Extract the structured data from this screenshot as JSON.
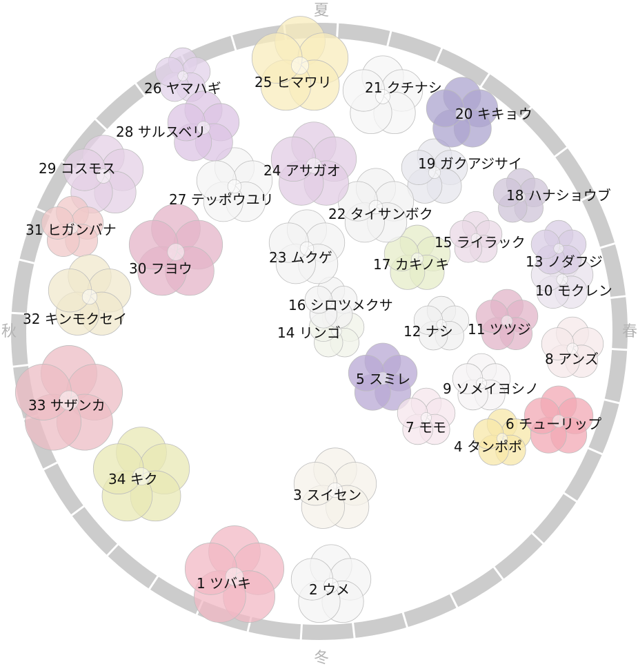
{
  "colors": {
    "ring": "#cccccc",
    "ring_divider": "#ffffff",
    "season_text": "#b3b3b3",
    "label_text": "#111111"
  },
  "seasons": [
    {
      "id": "summer",
      "label": "夏"
    },
    {
      "id": "spring",
      "label": "春"
    },
    {
      "id": "winter",
      "label": "冬"
    },
    {
      "id": "autumn",
      "label": "秋"
    }
  ],
  "ring_segments": 36,
  "flowers": [
    {
      "id": 1,
      "label": "1 ツバキ",
      "icon": "camellia-icon",
      "color": "#f2b8c4"
    },
    {
      "id": 2,
      "label": "2 ウメ",
      "icon": "ume-icon",
      "color": "#f4f4f4"
    },
    {
      "id": 3,
      "label": "3 スイセン",
      "icon": "narcissus-icon",
      "color": "#f6f2ea"
    },
    {
      "id": 4,
      "label": "4 タンポポ",
      "icon": "dandelion-icon",
      "color": "#f7e7a8"
    },
    {
      "id": 5,
      "label": "5 スミレ",
      "icon": "violet-icon",
      "color": "#b8a8d4"
    },
    {
      "id": 6,
      "label": "6 チューリップ",
      "icon": "tulip-icon",
      "color": "#f2a8b4"
    },
    {
      "id": 7,
      "label": "7 モモ",
      "icon": "peach-icon",
      "color": "#f6e6ec"
    },
    {
      "id": 8,
      "label": "8 アンズ",
      "icon": "apricot-icon",
      "color": "#f6e8ea"
    },
    {
      "id": 9,
      "label": "9 ソメイヨシノ",
      "icon": "cherry-blossom-icon",
      "color": "#f6f3f4"
    },
    {
      "id": 10,
      "label": "10 モクレン",
      "icon": "magnolia-icon",
      "color": "#e8e2ec"
    },
    {
      "id": 11,
      "label": "11 ツツジ",
      "icon": "azalea-icon",
      "color": "#e2b4c8"
    },
    {
      "id": 12,
      "label": "12 ナシ",
      "icon": "pear-icon",
      "color": "#f0f0f0"
    },
    {
      "id": 13,
      "label": "13 ノダフジ",
      "icon": "wisteria-icon",
      "color": "#d8cce4"
    },
    {
      "id": 14,
      "label": "14 リンゴ",
      "icon": "apple-icon",
      "color": "#f0f3e8"
    },
    {
      "id": 15,
      "label": "15 ライラック",
      "icon": "lilac-icon",
      "color": "#ead8e6"
    },
    {
      "id": 16,
      "label": "16 シロツメクサ",
      "icon": "clover-icon",
      "color": "#f3f3f3"
    },
    {
      "id": 17,
      "label": "17 カキノキ",
      "icon": "persimmon-icon",
      "color": "#e6ecc8"
    },
    {
      "id": 18,
      "label": "18 ハナショウブ",
      "icon": "iris-icon",
      "color": "#cfc4d8"
    },
    {
      "id": 19,
      "label": "19 ガクアジサイ",
      "icon": "hydrangea-icon",
      "color": "#e6e6ec"
    },
    {
      "id": 20,
      "label": "20 キキョウ",
      "icon": "bellflower-icon",
      "color": "#aca4cf"
    },
    {
      "id": 21,
      "label": "21 クチナシ",
      "icon": "gardenia-icon",
      "color": "#f6f6f6"
    },
    {
      "id": 22,
      "label": "22 タイサンボク",
      "icon": "southern-magnolia-icon",
      "color": "#f2f2f2"
    },
    {
      "id": 23,
      "label": "23 ムクゲ",
      "icon": "rose-of-sharon-icon",
      "color": "#f3f3f3"
    },
    {
      "id": 24,
      "label": "24 アサガオ",
      "icon": "morning-glory-icon",
      "color": "#e2cce4"
    },
    {
      "id": 25,
      "label": "25 ヒマワリ",
      "icon": "sunflower-icon",
      "color": "#f8ecbc"
    },
    {
      "id": 26,
      "label": "26 ヤマハギ",
      "icon": "bush-clover-icon",
      "color": "#e2d2ea"
    },
    {
      "id": 27,
      "label": "27 テッポウユリ",
      "icon": "lily-icon",
      "color": "#f4f4f4"
    },
    {
      "id": 28,
      "label": "28 サルスベリ",
      "icon": "crape-myrtle-icon",
      "color": "#dcc4e4"
    },
    {
      "id": 29,
      "label": "29 コスモス",
      "icon": "cosmos-icon",
      "color": "#e4d0e6"
    },
    {
      "id": 30,
      "label": "30 フヨウ",
      "icon": "cotton-rose-icon",
      "color": "#e4b4c8"
    },
    {
      "id": 31,
      "label": "31 ヒガンバナ",
      "icon": "red-spider-lily-icon",
      "color": "#f0c8c8"
    },
    {
      "id": 32,
      "label": "32 キンモクセイ",
      "icon": "osmanthus-icon",
      "color": "#f0e8cc"
    },
    {
      "id": 33,
      "label": "33 サザンカ",
      "icon": "sasanqua-icon",
      "color": "#ecbcc4"
    },
    {
      "id": 34,
      "label": "34 キク",
      "icon": "chrysanthemum-icon",
      "color": "#e8e8b4"
    }
  ]
}
